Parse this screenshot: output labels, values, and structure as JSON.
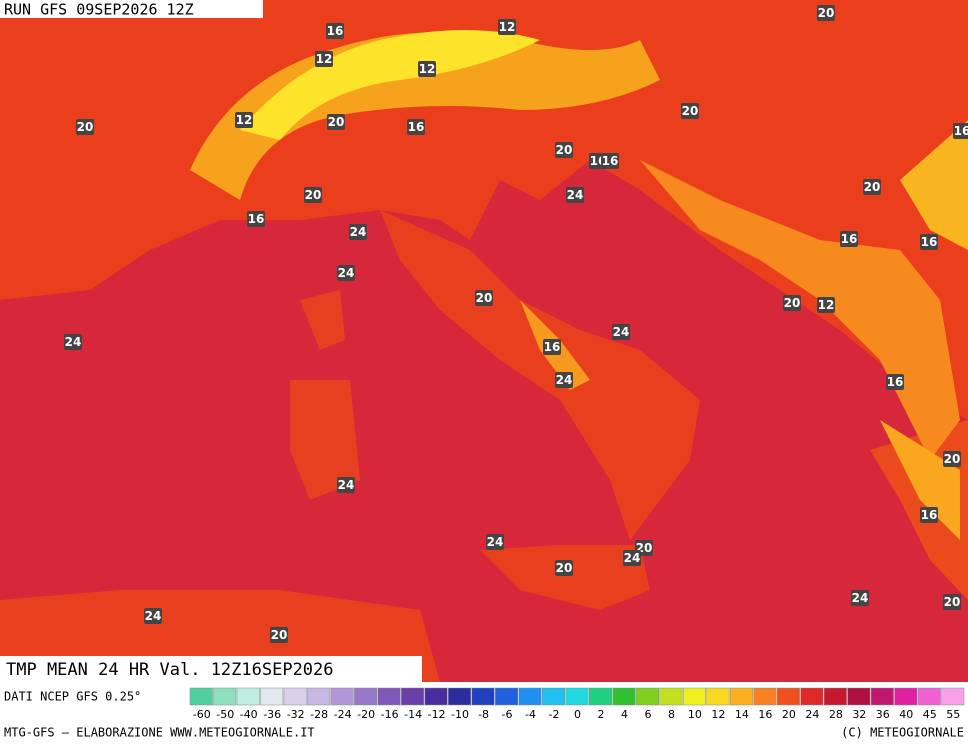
{
  "header": {
    "run": "RUN GFS 09SEP2026 12Z",
    "title": "TMP MEAN 24 HR Val. 12Z16SEP2026"
  },
  "contour_labels": [
    16,
    12,
    20,
    12,
    12,
    20,
    12,
    20,
    16,
    20,
    16,
    20,
    16,
    16,
    20,
    24,
    20,
    16,
    24,
    16,
    16,
    24,
    20,
    20,
    12,
    24,
    24,
    16,
    24,
    16,
    20,
    24,
    16,
    24,
    20,
    24,
    20,
    24,
    20,
    24,
    20
  ],
  "colorbar": {
    "labels": [
      -60,
      -50,
      -40,
      -36,
      -32,
      -28,
      -24,
      -20,
      -16,
      -14,
      -12,
      -10,
      -8,
      -6,
      -4,
      -2,
      0,
      2,
      4,
      6,
      8,
      10,
      12,
      14,
      16,
      20,
      24,
      28,
      32,
      36,
      40,
      45,
      55
    ],
    "colors": [
      "#4fd0a0",
      "#8ee0c0",
      "#bdeee0",
      "#e0e8f0",
      "#d8d0ec",
      "#c8b8e4",
      "#b098d8",
      "#9878c8",
      "#8058b8",
      "#6840a8",
      "#4a2ca0",
      "#2c2c9c",
      "#2040c0",
      "#2060e0",
      "#2090f0",
      "#20c0f0",
      "#20d8e0",
      "#20d080",
      "#30c030",
      "#80d020",
      "#c0e020",
      "#f0f020",
      "#fbd820",
      "#fbb020",
      "#f88020",
      "#f05020",
      "#e02828",
      "#c81830",
      "#b01040",
      "#c01870",
      "#e020a0",
      "#f060d0",
      "#f8a0e8"
    ]
  },
  "footer": {
    "source": "DATI NCEP GFS 0.25°",
    "credits": "MTG-GFS — ELABORAZIONE WWW.METEOGIORNALE.IT",
    "copyright": "(C) METEOGIORNALE"
  }
}
